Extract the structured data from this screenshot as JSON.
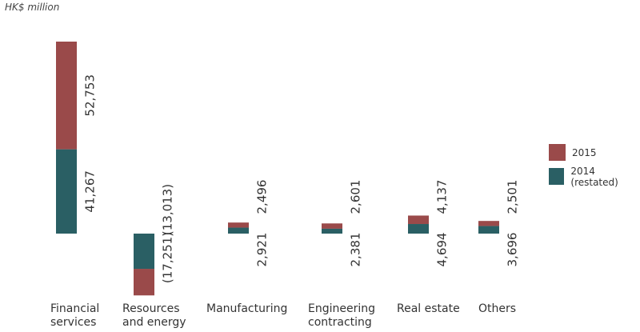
{
  "unit_label": "HK$ million",
  "chart_data": {
    "type": "bar",
    "categories": [
      [
        "Financial",
        "services"
      ],
      [
        "Resources",
        "and energy"
      ],
      [
        "Manufacturing"
      ],
      [
        "Engineering",
        "contracting"
      ],
      [
        "Real estate"
      ],
      [
        "Others"
      ]
    ],
    "series": [
      {
        "name": "2015",
        "values": [
          52753,
          -13013,
          2496,
          2601,
          4137,
          2501
        ],
        "labels": [
          "52,753",
          "(13,013)",
          "2,496",
          "2,601",
          "4,137",
          "2,501"
        ]
      },
      {
        "name": "2014 (restated)",
        "values": [
          41267,
          -17251,
          2921,
          2381,
          4694,
          3696
        ],
        "labels": [
          "41,267",
          "(17,251)",
          "2,921",
          "2,381",
          "4,694",
          "3,696"
        ]
      }
    ],
    "colors": {
      "2015": "#9a4a4a",
      "2014 (restated)": "#2a5f64"
    },
    "legend_position": "right",
    "grid": false
  }
}
